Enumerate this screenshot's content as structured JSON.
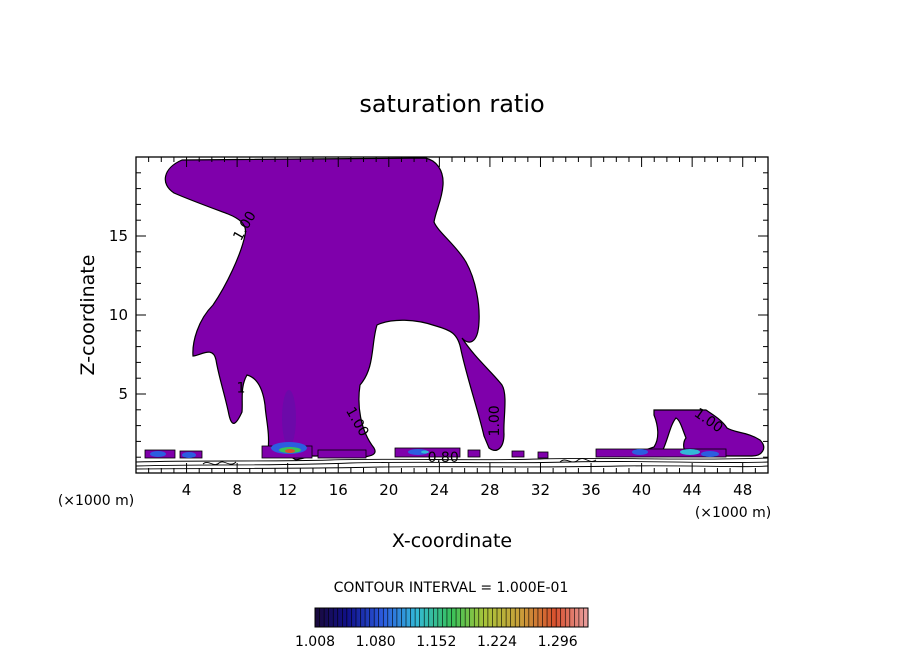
{
  "chart_data": {
    "type": "contour",
    "title": "saturation ratio",
    "xlabel": "X-coordinate",
    "ylabel": "Z-coordinate",
    "x_unit_left": "(×1000 m)",
    "x_unit_right": "(×1000 m)",
    "xlim": [
      0,
      50
    ],
    "ylim": [
      0,
      20
    ],
    "xticks": [
      4,
      8,
      12,
      16,
      20,
      24,
      28,
      32,
      36,
      40,
      44,
      48
    ],
    "yticks": [
      5,
      10,
      15
    ],
    "contour_labels": [
      {
        "text": "1.00",
        "x": 8.9,
        "y": 15.5,
        "angle": -60
      },
      {
        "text": "1",
        "x": 8.3,
        "y": 5.1,
        "angle": 0
      },
      {
        "text": "1.00",
        "x": 17.2,
        "y": 3.1,
        "angle": 60
      },
      {
        "text": "1.00",
        "x": 28.7,
        "y": 3.3,
        "angle": -90
      },
      {
        "text": "1.00",
        "x": 45.1,
        "y": 3.1,
        "angle": 35
      },
      {
        "text": "0.80",
        "x": 24.3,
        "y": 0.7,
        "angle": 0
      }
    ],
    "contour_interval_text": "CONTOUR INTERVAL = 1.000E-01",
    "fill_color": "#7f00ab",
    "colorbar": {
      "ticks": [
        "1.008",
        "1.080",
        "1.152",
        "1.224",
        "1.296"
      ],
      "min": 1.008,
      "max": 1.332
    }
  }
}
